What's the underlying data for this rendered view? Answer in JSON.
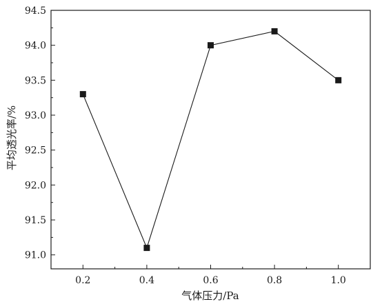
{
  "chart_data": {
    "type": "line",
    "title": "",
    "xlabel": "气体压力/Pa",
    "ylabel": "平均透光率/%",
    "x": [
      0.2,
      0.4,
      0.6,
      0.8,
      1.0
    ],
    "series": [
      {
        "values": [
          93.3,
          91.1,
          94.0,
          94.2,
          93.5
        ]
      }
    ],
    "xlim": [
      0.1,
      1.1
    ],
    "ylim": [
      90.8,
      94.5
    ],
    "xticks": [
      0.2,
      0.4,
      0.6,
      0.8,
      1.0
    ],
    "xtick_labels": [
      "0.2",
      "0.4",
      "0.6",
      "0.8",
      "1.0"
    ],
    "yticks": [
      91.0,
      91.5,
      92.0,
      92.5,
      93.0,
      93.5,
      94.0,
      94.5
    ],
    "ytick_labels": [
      "91.0",
      "91.5",
      "92.0",
      "92.5",
      "93.0",
      "93.5",
      "94.0",
      "94.5"
    ],
    "marker": "square",
    "grid": false,
    "legend": "none",
    "colors": {
      "line": "#1a1a1a",
      "marker": "#1a1a1a",
      "axis": "#1a1a1a"
    }
  }
}
